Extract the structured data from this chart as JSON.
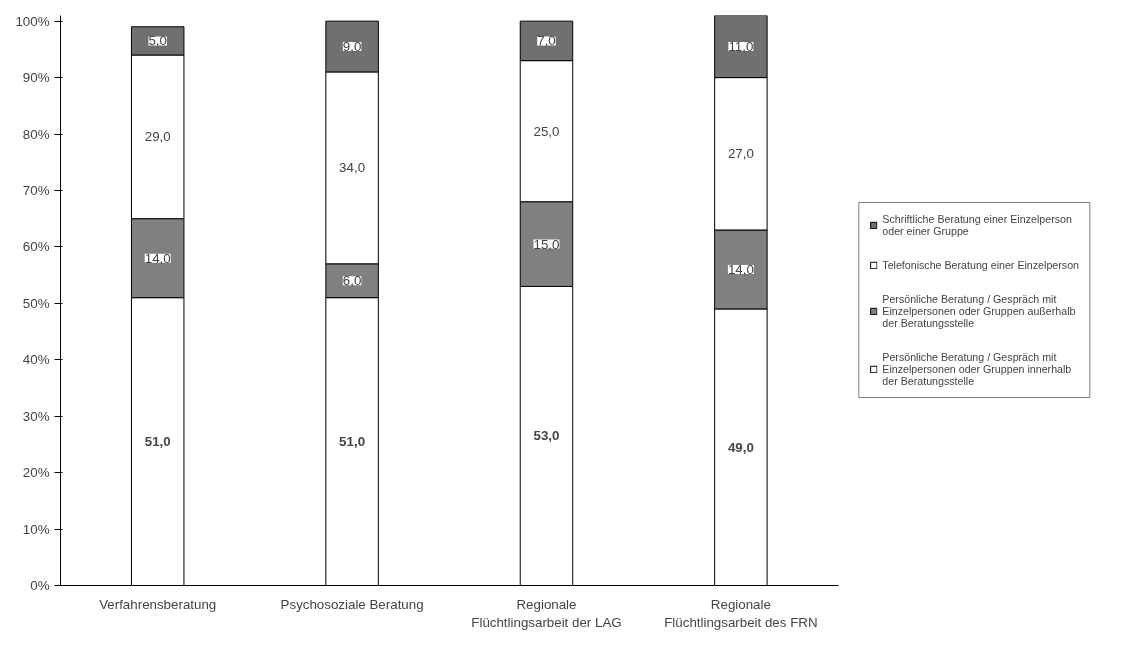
{
  "chart_data": {
    "type": "bar",
    "stacked": true,
    "categories": [
      "Verfahrensberatung",
      "Psychosoziale Beratung",
      "Regionale Flüchtlingsarbeit der LAG",
      "Regionale Flüchtlingsarbeit des FRN"
    ],
    "series": [
      {
        "name": "Persönliche Beratung / Gespräch mit Einzelpersonen oder Gruppen innerhalb der Beratungsstelle",
        "color": "#ffffff",
        "values": [
          51,
          51,
          53,
          49
        ],
        "value_labels": [
          "51,0",
          "51,0",
          "53,0",
          "49,0"
        ]
      },
      {
        "name": "Persönliche Beratung / Gespräch mit Einzelpersonen oder Gruppen außerhalb der Beratungsstelle",
        "color": "#808080",
        "values": [
          14,
          6,
          15,
          14
        ],
        "value_labels": [
          "14,0",
          "6,0",
          "15,0",
          "14,0"
        ]
      },
      {
        "name": "Telefonische Beratung einer Einzelperson",
        "color": "#ffffff",
        "values": [
          29,
          34,
          25,
          27
        ],
        "value_labels": [
          "29,0",
          "34,0",
          "25,0",
          "27,0"
        ]
      },
      {
        "name": "Schriftliche Beratung einer Einzelperson oder einer Gruppe",
        "color": "#707070",
        "values": [
          5,
          9,
          7,
          11
        ],
        "value_labels": [
          "5,0",
          "9,0",
          "7,0",
          "11,0"
        ]
      }
    ],
    "ylim": [
      0,
      101
    ],
    "yticks": [
      {
        "value": 0,
        "label": "0%"
      },
      {
        "value": 10,
        "label": "10%"
      },
      {
        "value": 20,
        "label": "20%"
      },
      {
        "value": 30,
        "label": "30%"
      },
      {
        "value": 40,
        "label": "40%"
      },
      {
        "value": 50,
        "label": "50%"
      },
      {
        "value": 60,
        "label": "60%"
      },
      {
        "value": 70,
        "label": "70%"
      },
      {
        "value": 80,
        "label": "80%"
      },
      {
        "value": 90,
        "label": "90%"
      },
      {
        "value": 100,
        "label": "100%"
      }
    ],
    "legend": "right",
    "grid": false
  }
}
